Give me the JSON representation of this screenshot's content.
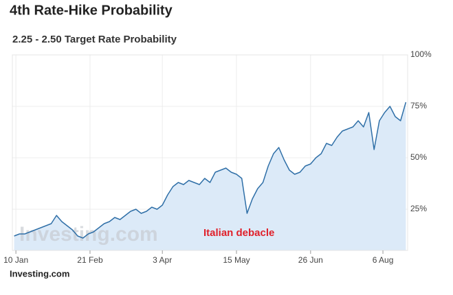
{
  "chart_data": {
    "type": "area",
    "title": "4th Rate-Hike Probability",
    "subtitle": "2.25 - 2.50 Target Rate Probability",
    "annotation": "Italian debacle",
    "watermark": "Investing.com",
    "source": "Investing.com",
    "x": [
      9,
      12,
      15,
      18,
      21,
      24,
      27,
      30,
      33,
      36,
      39,
      42,
      45,
      48,
      51,
      54,
      57,
      60,
      63,
      66,
      69,
      72,
      75,
      78,
      81,
      84,
      87,
      90,
      93,
      96,
      99,
      102,
      105,
      108,
      111,
      114,
      117,
      120,
      123,
      126,
      129,
      132,
      135,
      138,
      141,
      144,
      147,
      150,
      153,
      156,
      159,
      162,
      165,
      168,
      171,
      174,
      177,
      180,
      183,
      186,
      189,
      192,
      195,
      198,
      201,
      204,
      207,
      210,
      213,
      216,
      219,
      222,
      225,
      228,
      231
    ],
    "values": [
      12,
      13,
      13,
      14,
      15,
      16,
      17,
      18,
      22,
      19,
      17,
      15,
      12,
      11,
      13,
      14,
      16,
      18,
      19,
      21,
      20,
      22,
      24,
      25,
      23,
      24,
      26,
      25,
      27,
      32,
      36,
      38,
      37,
      39,
      38,
      37,
      40,
      38,
      43,
      44,
      45,
      43,
      42,
      40,
      23,
      30,
      35,
      38,
      46,
      52,
      55,
      49,
      44,
      42,
      43,
      46,
      47,
      50,
      52,
      57,
      56,
      60,
      63,
      64,
      65,
      68,
      65,
      72,
      54,
      68,
      72,
      75,
      70,
      68,
      77
    ],
    "color": "#2f6fa7",
    "fill": "#dceaf8",
    "xlim": [
      8,
      232
    ],
    "xticks": [
      {
        "value": 10,
        "label": "10 Jan"
      },
      {
        "value": 52,
        "label": "21 Feb"
      },
      {
        "value": 93,
        "label": "3 Apr"
      },
      {
        "value": 135,
        "label": "15 May"
      },
      {
        "value": 177,
        "label": "26 Jun"
      },
      {
        "value": 218,
        "label": "6 Aug"
      }
    ],
    "ylim": [
      5,
      100
    ],
    "yticks": [
      {
        "value": 25,
        "label": "25%"
      },
      {
        "value": 50,
        "label": "50%"
      },
      {
        "value": 75,
        "label": "75%"
      },
      {
        "value": 100,
        "label": "100%"
      }
    ],
    "grid": true
  }
}
